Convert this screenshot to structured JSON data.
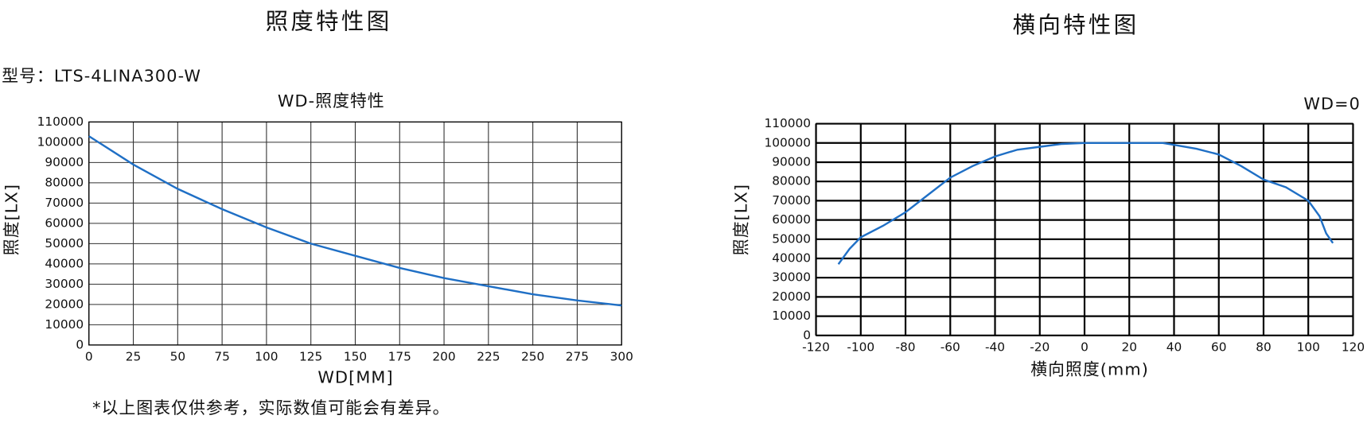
{
  "chart_data": [
    {
      "type": "line",
      "heading": "照度特性图",
      "model": "型号：LTS-4LINA300-W",
      "title": "WD-照度特性",
      "xlabel": "WD[MM]",
      "ylabel": "照度[LX]",
      "note": "*以上图表仅供参考，实际数值可能会有差异。",
      "x": [
        0,
        25,
        50,
        75,
        100,
        125,
        150,
        175,
        200,
        225,
        250,
        275,
        300
      ],
      "values": [
        103000,
        89000,
        77000,
        67000,
        58000,
        50000,
        44000,
        38000,
        33000,
        29000,
        25000,
        22000,
        19500
      ],
      "color": "#1f6fc5",
      "xlim": [
        0,
        300
      ],
      "xticks": [
        0,
        25,
        50,
        75,
        100,
        125,
        150,
        175,
        200,
        225,
        250,
        275,
        300
      ],
      "ylim": [
        0,
        110000
      ],
      "yticks": [
        0,
        10000,
        20000,
        30000,
        40000,
        50000,
        60000,
        70000,
        80000,
        90000,
        100000,
        110000
      ],
      "grid": true
    },
    {
      "type": "line",
      "heading": "横向特性图",
      "annotation": "WD=0",
      "xlabel": "横向照度(mm)",
      "ylabel": "照度[LX]",
      "x": [
        -110,
        -105,
        -100,
        -90,
        -80,
        -70,
        -60,
        -50,
        -40,
        -30,
        -20,
        -10,
        0,
        20,
        35,
        40,
        50,
        60,
        70,
        80,
        90,
        100,
        105,
        108,
        111
      ],
      "values": [
        37000,
        45000,
        51000,
        57000,
        64000,
        73000,
        82000,
        88000,
        93000,
        96500,
        98000,
        99500,
        100000,
        100000,
        100000,
        99000,
        97000,
        94000,
        88000,
        81000,
        77000,
        70000,
        62000,
        53000,
        48000
      ],
      "color": "#1f6fc5",
      "xlim": [
        -120,
        120
      ],
      "xticks": [
        -120,
        -100,
        -80,
        -60,
        -40,
        -20,
        0,
        20,
        40,
        60,
        80,
        100,
        120
      ],
      "ylim": [
        0,
        110000
      ],
      "yticks": [
        0,
        10000,
        20000,
        30000,
        40000,
        50000,
        60000,
        70000,
        80000,
        90000,
        100000,
        110000
      ],
      "grid": true
    }
  ]
}
